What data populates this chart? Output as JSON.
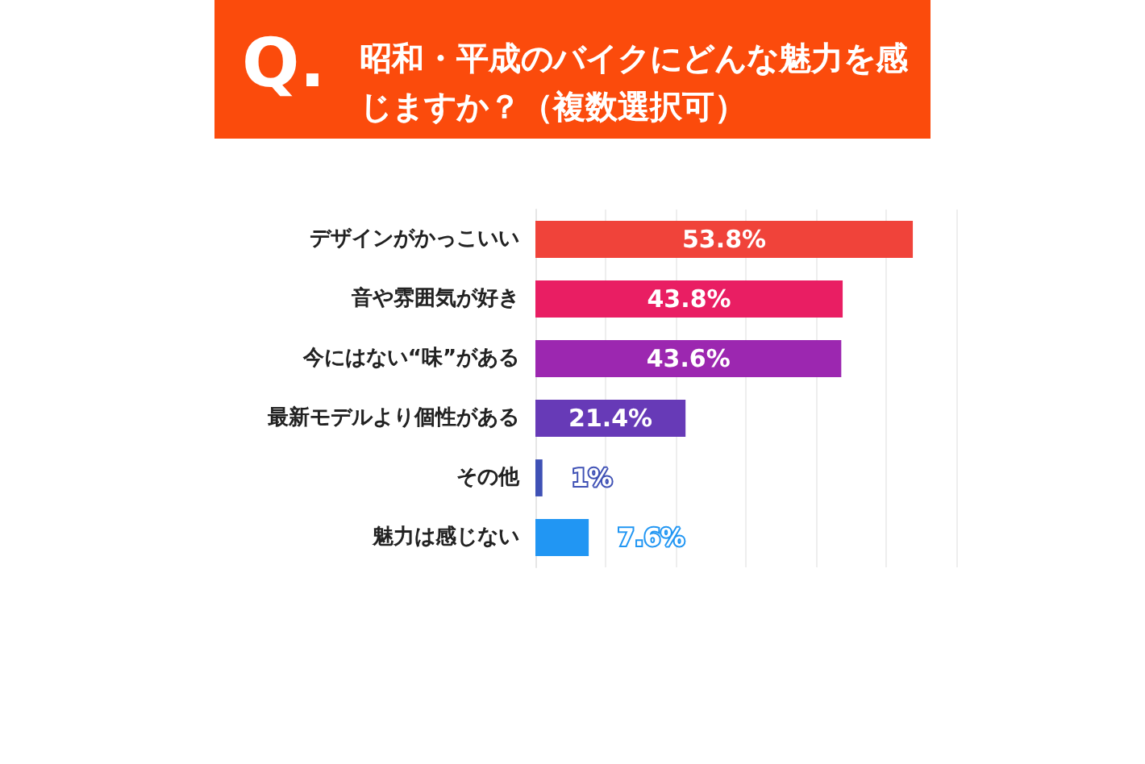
{
  "chart_data": {
    "type": "bar",
    "orientation": "horizontal",
    "title": "昭和・平成のバイクにどんな魅力を感じますか？（複数選択可）",
    "annotations": [
      "Q."
    ],
    "categories": [
      "デザインがかっこいい",
      "音や雰囲気が好き",
      "今にはない“味”がある",
      "最新モデルより個性がある",
      "その他",
      "魅力は感じない"
    ],
    "values": [
      53.8,
      43.8,
      43.6,
      21.4,
      1,
      7.6
    ],
    "colors": [
      "#f0433a",
      "#e91e63",
      "#9c27b0",
      "#673ab7",
      "#3f51b5",
      "#2196f3"
    ],
    "value_labels": [
      "53.8%",
      "43.8%",
      "43.6%",
      "21.4%",
      "1%",
      "7.6%"
    ],
    "xlim": [
      0,
      60
    ],
    "xticks": [
      {
        "value": 0,
        "label": null
      },
      {
        "value": 10,
        "label": null
      },
      {
        "value": 20,
        "label": null
      },
      {
        "value": 30,
        "label": null
      },
      {
        "value": 40,
        "label": null
      },
      {
        "value": 50,
        "label": null
      },
      {
        "value": 60,
        "label": null
      }
    ],
    "grid": "x",
    "tick_labels": "y"
  }
}
